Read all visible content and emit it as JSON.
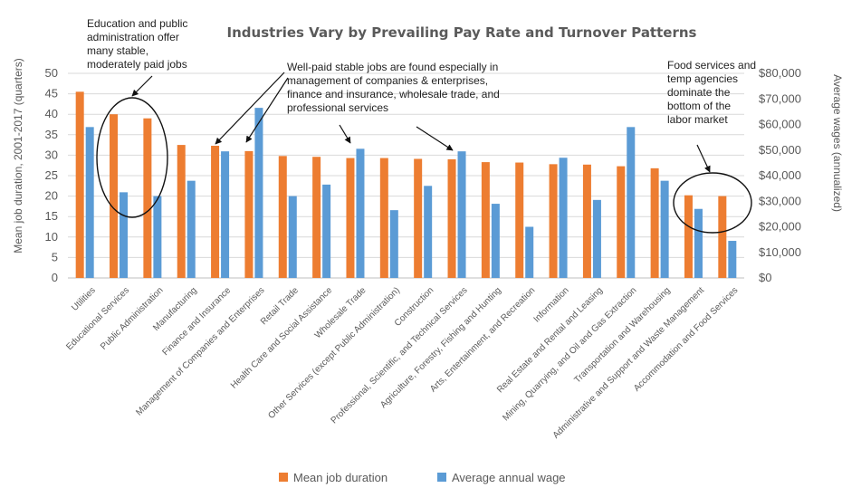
{
  "chart_data": {
    "type": "bar",
    "title": "Industries Vary by Prevailing Pay Rate and Turnover Patterns",
    "ylabel": "Mean job duration, 2001-2017 (quarters)",
    "y2label": "Average wages (annualized)",
    "ylim": [
      0,
      50
    ],
    "y2lim": [
      0,
      80000
    ],
    "yticks": [
      "0",
      "5",
      "10",
      "15",
      "20",
      "25",
      "30",
      "35",
      "40",
      "45",
      "50"
    ],
    "y2ticks": [
      "$0",
      "$10,000",
      "$20,000",
      "$30,000",
      "$40,000",
      "$50,000",
      "$60,000",
      "$70,000",
      "$80,000"
    ],
    "grid": true,
    "legend_position": "bottom",
    "categories": [
      "Utilities",
      "Educational Services",
      "Public Administration",
      "Manufacturing",
      "Finance and Insurance",
      "Management of Companies and Enterprises",
      "Retail Trade",
      "Health Care and Social Assistance",
      "Wholesale Trade",
      "Other Services (except Public Administration)",
      "Construction",
      "Professional, Scientific, and Technical Services",
      "Agriculture, Forestry, Fishing and Hunting",
      "Arts, Entertainment, and Recreation",
      "Information",
      "Real Estate and Rental and Leasing",
      "Mining, Quarrying, and Oil and Gas Extraction",
      "Transportation and Warehousing",
      "Administrative and Support and Waste Management",
      "Accommodation and Food Services"
    ],
    "series": [
      {
        "name": "Mean job duration",
        "axis": "left",
        "color": "#ED7D31",
        "values": [
          45.5,
          40,
          39,
          32.5,
          32.3,
          31,
          29.8,
          29.6,
          29.3,
          29.3,
          29.1,
          29,
          28.3,
          28.2,
          27.8,
          27.7,
          27.3,
          26.8,
          20.2,
          20
        ]
      },
      {
        "name": "Average annual wage",
        "axis": "right",
        "color": "#5B9BD5",
        "values": [
          59000,
          33500,
          32000,
          38000,
          49500,
          66500,
          32000,
          36500,
          50500,
          26500,
          36000,
          49500,
          29000,
          20000,
          47000,
          30500,
          59000,
          38000,
          27000,
          14500
        ]
      }
    ],
    "annotations": [
      {
        "id": "education",
        "lines": [
          "Education and public",
          "administration offer",
          "many stable,",
          "moderately paid jobs"
        ]
      },
      {
        "id": "wellpaid",
        "lines": [
          "Well-paid stable jobs are found especially in",
          "management of companies & enterprises,",
          "finance and insurance, wholesale trade, and",
          "professional services"
        ]
      },
      {
        "id": "foodservices",
        "lines": [
          "Food services and",
          "temp agencies",
          "dominate the",
          "bottom of the",
          "labor market"
        ]
      }
    ]
  }
}
